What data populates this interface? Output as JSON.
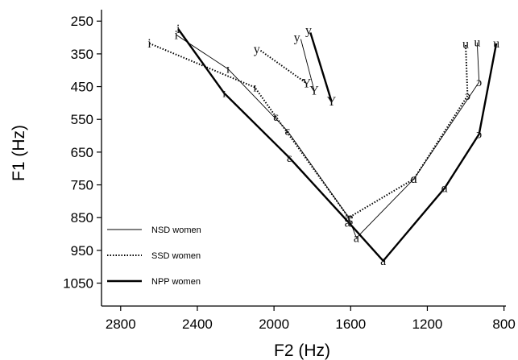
{
  "chart_data": {
    "type": "line",
    "title": "",
    "xlabel": "F2 (Hz)",
    "ylabel": "F1 (Hz)",
    "x_reversed": true,
    "y_reversed": true,
    "xlim": [
      2900,
      790
    ],
    "ylim": [
      215,
      1120
    ],
    "x_ticks": [
      2800,
      2400,
      2000,
      1600,
      1200,
      800
    ],
    "y_ticks": [
      250,
      350,
      450,
      550,
      650,
      750,
      850,
      950,
      1050
    ],
    "grid": false,
    "legend_position": "lower-left",
    "series": [
      {
        "name": "NSD women",
        "style": "thin",
        "vowels": [
          "i",
          "ɪ",
          "ɛ",
          "æ",
          "a",
          "ɑ",
          "ɔ",
          "u"
        ],
        "points": [
          {
            "x": 2510,
            "y": 292
          },
          {
            "x": 2240,
            "y": 396
          },
          {
            "x": 1930,
            "y": 585
          },
          {
            "x": 1610,
            "y": 850
          },
          {
            "x": 1570,
            "y": 912
          },
          {
            "x": 1270,
            "y": 732
          },
          {
            "x": 930,
            "y": 436
          },
          {
            "x": 940,
            "y": 315
          }
        ]
      },
      {
        "name": "SSD women",
        "style": "dotted",
        "vowels": [
          "i",
          "ɪ",
          "ɛ",
          "æ",
          "ɑ",
          "ɔ",
          "u"
        ],
        "points": [
          {
            "x": 2650,
            "y": 318
          },
          {
            "x": 2100,
            "y": 452
          },
          {
            "x": 1990,
            "y": 542
          },
          {
            "x": 1610,
            "y": 850
          },
          {
            "x": 1270,
            "y": 732
          },
          {
            "x": 990,
            "y": 478
          },
          {
            "x": 1000,
            "y": 320
          }
        ]
      },
      {
        "name": "NPP women",
        "style": "thick",
        "vowels": [
          "i",
          "ɪ",
          "ɛ",
          "æ",
          "a",
          "ɑ",
          "ɔ",
          "u"
        ],
        "points": [
          {
            "x": 2500,
            "y": 274
          },
          {
            "x": 2260,
            "y": 470
          },
          {
            "x": 1920,
            "y": 667
          },
          {
            "x": 1610,
            "y": 865
          },
          {
            "x": 1430,
            "y": 982
          },
          {
            "x": 1110,
            "y": 760
          },
          {
            "x": 930,
            "y": 595
          },
          {
            "x": 840,
            "y": 318
          }
        ]
      }
    ],
    "annotations": [
      {
        "text": "y",
        "x": 2090,
        "y": 335
      },
      {
        "text": "Y",
        "x": 1830,
        "y": 440
      },
      {
        "text": "y",
        "x": 1880,
        "y": 300
      },
      {
        "text": "Y",
        "x": 1790,
        "y": 462
      },
      {
        "text": "y",
        "x": 1820,
        "y": 278
      },
      {
        "text": "Y",
        "x": 1700,
        "y": 495
      }
    ],
    "annotation_lines": [
      {
        "style": "dotted",
        "from": {
          "x": 2070,
          "y": 340
        },
        "to": {
          "x": 1830,
          "y": 440
        }
      },
      {
        "style": "thin",
        "from": {
          "x": 1860,
          "y": 305
        },
        "to": {
          "x": 1790,
          "y": 462
        }
      },
      {
        "style": "thick",
        "from": {
          "x": 1810,
          "y": 285
        },
        "to": {
          "x": 1700,
          "y": 495
        }
      }
    ]
  }
}
